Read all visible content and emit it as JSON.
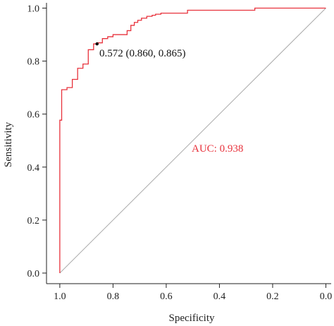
{
  "chart_data": {
    "type": "line",
    "title": "",
    "xlabel": "Specificity",
    "ylabel": "Sensitivity",
    "x_reversed": true,
    "xlim": [
      1.05,
      -0.02
    ],
    "ylim": [
      -0.04,
      1.02
    ],
    "x_ticks": [
      1.0,
      0.8,
      0.6,
      0.4,
      0.2,
      0.0
    ],
    "x_tick_labels": [
      "1.0",
      "0.8",
      "0.6",
      "0.4",
      "0.2",
      "0.0"
    ],
    "y_ticks": [
      0.0,
      0.2,
      0.4,
      0.6,
      0.8,
      1.0
    ],
    "y_tick_labels": [
      "0.0",
      "0.2",
      "0.4",
      "0.6",
      "0.8",
      "1.0"
    ],
    "grid": false,
    "colors": {
      "roc": "#e8323c",
      "diagonal": "#aaaaaa",
      "axis": "#222222"
    },
    "series": [
      {
        "style": "step",
        "x": [
          1.0,
          1.0,
          0.993,
          0.993,
          0.973,
          0.973,
          0.953,
          0.953,
          0.933,
          0.933,
          0.913,
          0.913,
          0.893,
          0.893,
          0.873,
          0.873,
          0.86,
          0.86,
          0.84,
          0.84,
          0.82,
          0.82,
          0.8,
          0.8,
          0.747,
          0.747,
          0.733,
          0.733,
          0.72,
          0.72,
          0.707,
          0.707,
          0.693,
          0.693,
          0.673,
          0.673,
          0.653,
          0.653,
          0.64,
          0.64,
          0.62,
          0.62,
          0.52,
          0.52,
          0.267,
          0.267,
          0.0
        ],
        "y": [
          0.0,
          0.577,
          0.577,
          0.692,
          0.692,
          0.7,
          0.7,
          0.731,
          0.731,
          0.773,
          0.773,
          0.789,
          0.789,
          0.843,
          0.843,
          0.865,
          0.865,
          0.869,
          0.869,
          0.885,
          0.885,
          0.892,
          0.892,
          0.9,
          0.9,
          0.915,
          0.915,
          0.935,
          0.935,
          0.946,
          0.946,
          0.954,
          0.954,
          0.962,
          0.962,
          0.969,
          0.969,
          0.973,
          0.973,
          0.977,
          0.977,
          0.981,
          0.981,
          0.992,
          0.992,
          1.0,
          1.0
        ]
      }
    ],
    "reference_line": {
      "x": [
        1.0,
        0.0
      ],
      "y": [
        0.0,
        1.0
      ]
    },
    "annotations": [
      {
        "text": "0.572 (0.860, 0.865)",
        "point": [
          0.86,
          0.865
        ],
        "color": "#111111"
      },
      {
        "text": "AUC: 0.938",
        "color": "#e8323c"
      }
    ]
  }
}
